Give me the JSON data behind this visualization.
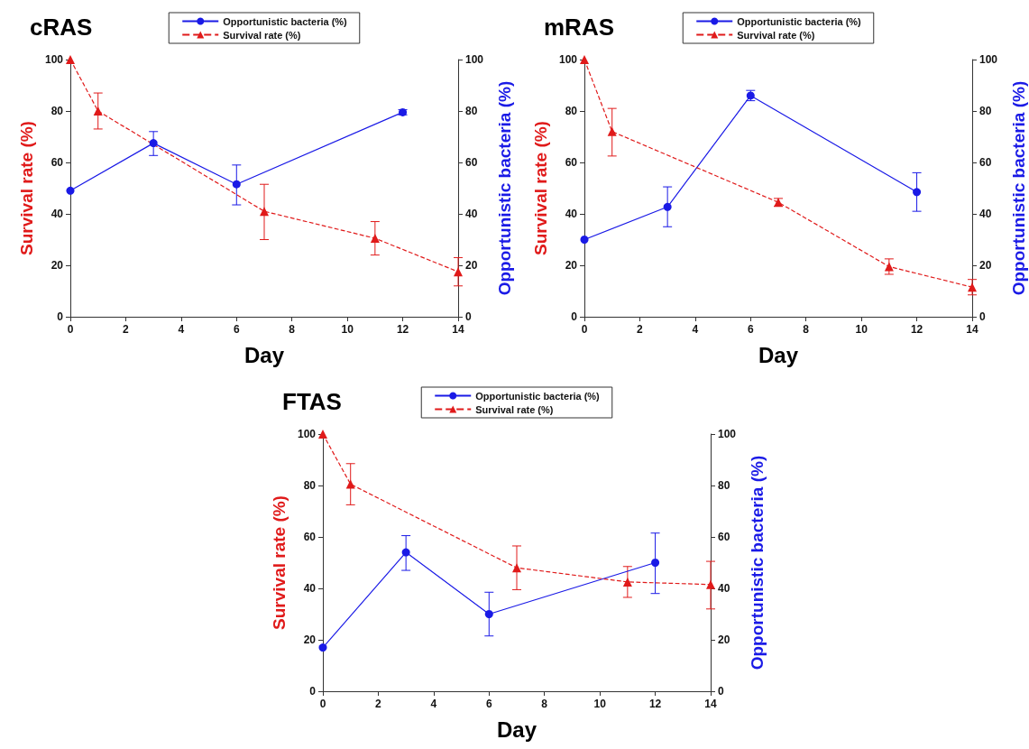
{
  "chart_data": [
    {
      "type": "line",
      "title": "cRAS",
      "xlabel": "Day",
      "ylabel": "Survival rate (%)",
      "y2label": "Opportunistic bacteria (%)",
      "xlim": [
        0,
        14
      ],
      "xticks": [
        0,
        2,
        4,
        6,
        8,
        10,
        12,
        14
      ],
      "ylim": [
        0,
        100
      ],
      "yticks": [
        0,
        20,
        40,
        60,
        80,
        100
      ],
      "y2lim": [
        0,
        100
      ],
      "y2ticks": [
        0,
        20,
        40,
        60,
        80,
        100
      ],
      "grid": false,
      "legend": "top",
      "series": [
        {
          "name": "Opportunistic bacteria (%)",
          "color": "#1a1ae6",
          "axis": "y2",
          "marker": "circle",
          "line_style": "solid",
          "x": [
            0,
            3,
            6,
            12
          ],
          "values": [
            49,
            67.5,
            51.5,
            79.5
          ],
          "errors": [
            null,
            [
              62.7,
              72
            ],
            [
              43.5,
              59
            ],
            [
              78.5,
              80.5
            ]
          ]
        },
        {
          "name": "Survival rate (%)",
          "color": "#e01a1a",
          "marker": "triangle",
          "line_style": "dashed",
          "x": [
            0,
            1,
            7,
            11,
            14
          ],
          "values": [
            100,
            80,
            41,
            30.5,
            17.5
          ],
          "errors": [
            null,
            [
              73,
              87
            ],
            [
              30,
              51.5
            ],
            [
              24,
              37
            ],
            [
              12,
              23
            ]
          ]
        }
      ]
    },
    {
      "type": "line",
      "title": "mRAS",
      "xlabel": "Day",
      "ylabel": "Survival rate (%)",
      "y2label": "Opportunistic bacteria (%)",
      "xlim": [
        0,
        14
      ],
      "xticks": [
        0,
        2,
        4,
        6,
        8,
        10,
        12,
        14
      ],
      "ylim": [
        0,
        100
      ],
      "yticks": [
        0,
        20,
        40,
        60,
        80,
        100
      ],
      "y2lim": [
        0,
        100
      ],
      "y2ticks": [
        0,
        20,
        40,
        60,
        80,
        100
      ],
      "grid": false,
      "legend": "top",
      "series": [
        {
          "name": "Opportunistic bacteria (%)",
          "color": "#1a1ae6",
          "axis": "y2",
          "marker": "circle",
          "line_style": "solid",
          "x": [
            0,
            3,
            6,
            12
          ],
          "values": [
            30,
            42.7,
            86,
            48.5
          ],
          "errors": [
            null,
            [
              35,
              50.5
            ],
            [
              84,
              88
            ],
            [
              41,
              56
            ]
          ]
        },
        {
          "name": "Survival rate (%)",
          "color": "#e01a1a",
          "marker": "triangle",
          "line_style": "dashed",
          "x": [
            0,
            1,
            7,
            11,
            14
          ],
          "values": [
            100,
            72,
            44.5,
            19.5,
            11.5
          ],
          "errors": [
            null,
            [
              62.5,
              81
            ],
            [
              43,
              46
            ],
            [
              16.5,
              22.5
            ],
            [
              8.5,
              14.5
            ]
          ]
        }
      ]
    },
    {
      "type": "line",
      "title": "FTAS",
      "xlabel": "Day",
      "ylabel": "Survival rate (%)",
      "y2label": "Opportunistic bacteria (%)",
      "xlim": [
        0,
        14
      ],
      "xticks": [
        0,
        2,
        4,
        6,
        8,
        10,
        12,
        14
      ],
      "ylim": [
        0,
        100
      ],
      "yticks": [
        0,
        20,
        40,
        60,
        80,
        100
      ],
      "y2lim": [
        0,
        100
      ],
      "y2ticks": [
        0,
        20,
        40,
        60,
        80,
        100
      ],
      "grid": false,
      "legend": "top",
      "series": [
        {
          "name": "Opportunistic bacteria (%)",
          "color": "#1a1ae6",
          "axis": "y2",
          "marker": "circle",
          "line_style": "solid",
          "x": [
            0,
            3,
            6,
            12
          ],
          "values": [
            17,
            54,
            30,
            50
          ],
          "errors": [
            null,
            [
              47,
              60.5
            ],
            [
              21.5,
              38.5
            ],
            [
              38,
              61.5
            ]
          ]
        },
        {
          "name": "Survival rate (%)",
          "color": "#e01a1a",
          "marker": "triangle",
          "line_style": "dashed",
          "x": [
            0,
            1,
            7,
            11,
            14
          ],
          "values": [
            100,
            80.5,
            48,
            42.5,
            41.5
          ],
          "errors": [
            null,
            [
              72.5,
              88.5
            ],
            [
              39.5,
              56.5
            ],
            [
              36.5,
              48.5
            ],
            [
              32,
              50.5
            ]
          ]
        }
      ]
    }
  ]
}
